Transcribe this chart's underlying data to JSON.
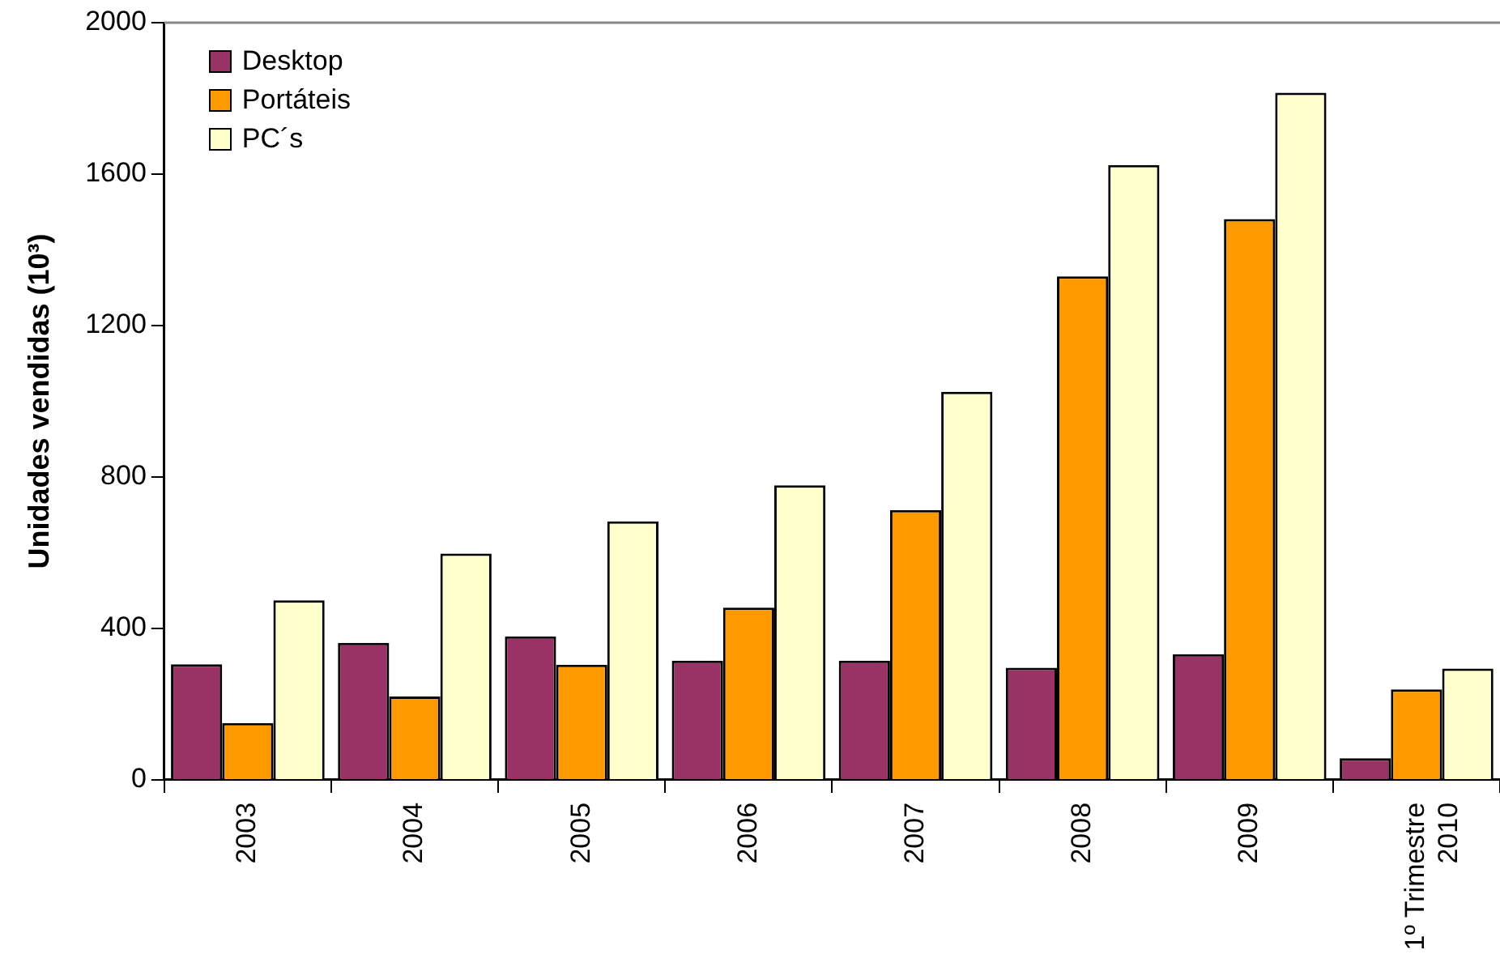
{
  "chart_data": {
    "type": "bar",
    "ylabel": "Unidades vendidas (10³)",
    "categories": [
      "2003",
      "2004",
      "2005",
      "2006",
      "2007",
      "2008",
      "2009",
      "1º Trimestre\n2010"
    ],
    "series": [
      {
        "name": "Desktop",
        "color": "#993366",
        "values": [
          305,
          362,
          379,
          315,
          315,
          296,
          332,
          57
        ]
      },
      {
        "name": "Portáteis",
        "color": "#ff9900",
        "values": [
          150,
          220,
          304,
          455,
          713,
          1330,
          1481,
          239
        ]
      },
      {
        "name": "PC´s",
        "color": "#ffffcc",
        "values": [
          474,
          598,
          683,
          778,
          1025,
          1624,
          1815,
          294
        ]
      }
    ],
    "ylim": [
      0,
      2000
    ],
    "yticks": [
      0,
      400,
      800,
      1200,
      1600,
      2000
    ],
    "grid": false,
    "legend": "top left"
  }
}
